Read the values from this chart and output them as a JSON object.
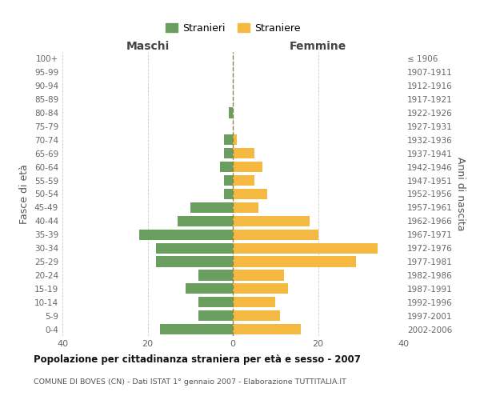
{
  "age_groups": [
    "0-4",
    "5-9",
    "10-14",
    "15-19",
    "20-24",
    "25-29",
    "30-34",
    "35-39",
    "40-44",
    "45-49",
    "50-54",
    "55-59",
    "60-64",
    "65-69",
    "70-74",
    "75-79",
    "80-84",
    "85-89",
    "90-94",
    "95-99",
    "100+"
  ],
  "birth_years": [
    "2002-2006",
    "1997-2001",
    "1992-1996",
    "1987-1991",
    "1982-1986",
    "1977-1981",
    "1972-1976",
    "1967-1971",
    "1962-1966",
    "1957-1961",
    "1952-1956",
    "1947-1951",
    "1942-1946",
    "1937-1941",
    "1932-1936",
    "1927-1931",
    "1922-1926",
    "1917-1921",
    "1912-1916",
    "1907-1911",
    "≤ 1906"
  ],
  "maschi": [
    17,
    8,
    8,
    11,
    8,
    18,
    18,
    22,
    13,
    10,
    2,
    2,
    3,
    2,
    2,
    0,
    1,
    0,
    0,
    0,
    0
  ],
  "femmine": [
    16,
    11,
    10,
    13,
    12,
    29,
    34,
    20,
    18,
    6,
    8,
    5,
    7,
    5,
    1,
    0,
    0,
    0,
    0,
    0,
    0
  ],
  "maschi_color": "#6a9e5e",
  "femmine_color": "#f5b942",
  "background_color": "#ffffff",
  "grid_color": "#cccccc",
  "title": "Popolazione per cittadinanza straniera per età e sesso - 2007",
  "subtitle": "COMUNE DI BOVES (CN) - Dati ISTAT 1° gennaio 2007 - Elaborazione TUTTITALIA.IT",
  "ylabel_left": "Fasce di età",
  "ylabel_right": "Anni di nascita",
  "xlabel_maschi": "Maschi",
  "xlabel_femmine": "Femmine",
  "legend_maschi": "Stranieri",
  "legend_femmine": "Straniere",
  "xlim": 40
}
